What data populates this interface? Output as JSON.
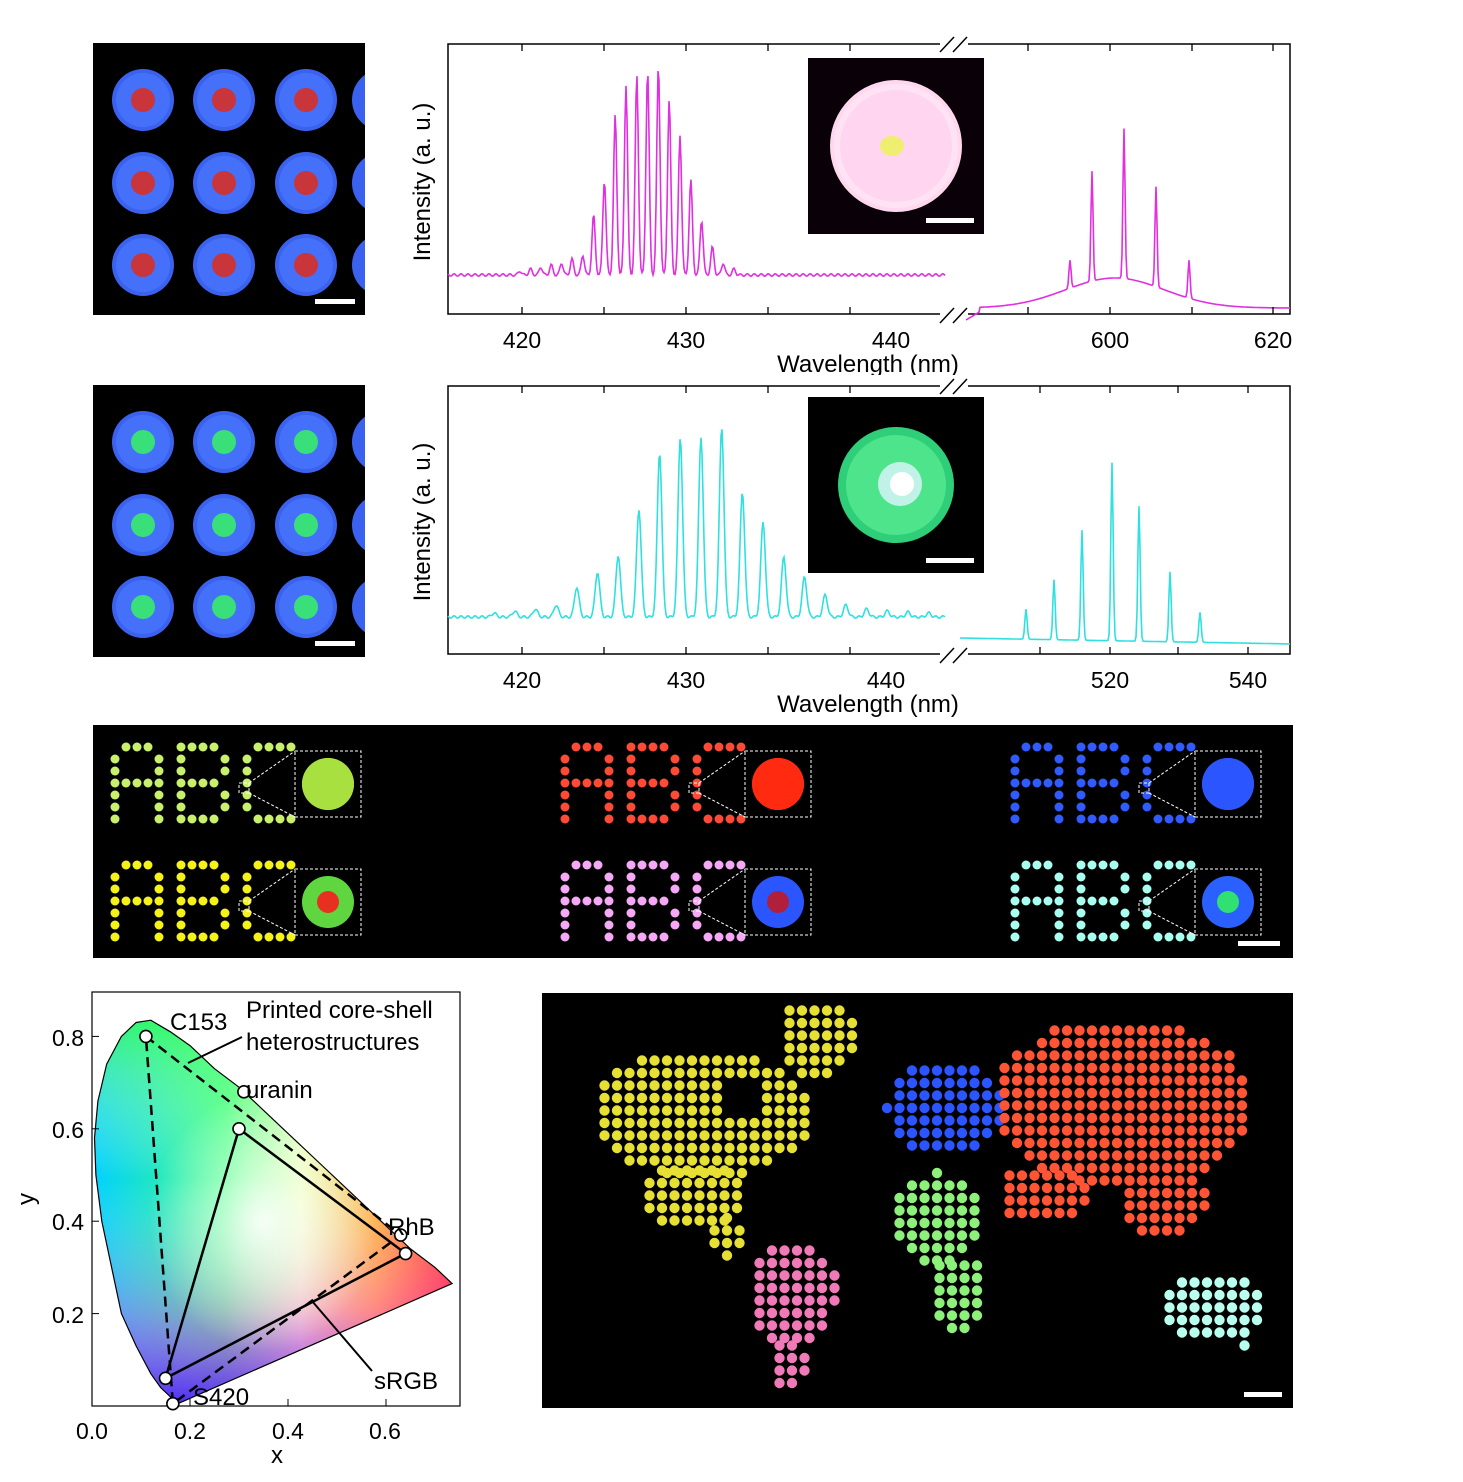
{
  "colors": {
    "magenta_trace": "#e030e0",
    "cyan_trace": "#30e0e0",
    "background_micro": "#000000",
    "blue_shell": "#3a6cff",
    "red_core": "#c8353a",
    "green_core": "#39e07a",
    "map_yellow": "#e6e034",
    "map_pink": "#f07ab8",
    "map_blue": "#2a55ff",
    "map_green": "#8cf07a",
    "map_red": "#ff5535",
    "map_cyan": "#b8fff0"
  },
  "panel_a": {
    "ylabel": "Intensity (a. u.)",
    "xlabel": "Wavelength (nm)",
    "left_ticks": [
      "420",
      "430",
      "440"
    ],
    "right_ticks": [
      "600",
      "620"
    ]
  },
  "panel_b": {
    "ylabel": "Intensity (a. u.)",
    "xlabel": "Wavelength (nm)",
    "left_ticks": [
      "420",
      "430",
      "440"
    ],
    "right_ticks": [
      "520",
      "540"
    ]
  },
  "abc_panel": {
    "letters": "ABC",
    "colors": [
      "#c8f06a",
      "#ff4a35",
      "#2f5bff",
      "#f5f21a",
      "#f5a8f5",
      "#a8fff0"
    ],
    "insets": [
      {
        "shell": "#a8e040",
        "core": "#a8e040"
      },
      {
        "shell": "#ff2a10",
        "core": "#ff2a10"
      },
      {
        "shell": "#2a55ff",
        "core": "#2a55ff"
      },
      {
        "shell": "#5fd640",
        "core": "#e83020"
      },
      {
        "shell": "#2a55ff",
        "core": "#b0203a"
      },
      {
        "shell": "#2a60ff",
        "core": "#30e070"
      }
    ]
  },
  "cie": {
    "xlabel": "x",
    "ylabel": "y",
    "x_ticks": [
      "0.0",
      "0.2",
      "0.4",
      "0.6"
    ],
    "y_ticks": [
      "0.2",
      "0.4",
      "0.6",
      "0.8"
    ],
    "points": [
      {
        "name": "C153",
        "x": 0.11,
        "y": 0.8
      },
      {
        "name": "uranin",
        "x": 0.31,
        "y": 0.68
      },
      {
        "name": "RhB",
        "x": 0.63,
        "y": 0.37
      },
      {
        "name": "S420",
        "x": 0.165,
        "y": 0.005
      }
    ],
    "annotation_printed": "Printed core-shell",
    "annotation_heterostructures": "heterostructures",
    "annotation_srgb": "sRGB",
    "srgb_triangle": [
      [
        0.3,
        0.6
      ],
      [
        0.64,
        0.33
      ],
      [
        0.15,
        0.06
      ]
    ],
    "printed_triangle": [
      [
        0.11,
        0.8
      ],
      [
        0.63,
        0.37
      ],
      [
        0.165,
        0.005
      ]
    ]
  }
}
